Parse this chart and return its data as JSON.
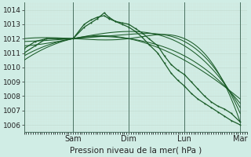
{
  "bg_color": "#d0ede5",
  "grid_color_major": "#b8d8cc",
  "grid_color_minor": "#c8e4da",
  "line_color": "#1a5c28",
  "title": "Pression niveau de la mer( hPa )",
  "ylim": [
    1005.5,
    1014.5
  ],
  "yticks": [
    1006,
    1007,
    1008,
    1009,
    1010,
    1011,
    1012,
    1013,
    1014
  ],
  "day_labels": [
    "Sam",
    "Dim",
    "Lun",
    "Mar"
  ],
  "day_positions": [
    0.22,
    0.47,
    0.72,
    0.97
  ],
  "xlim": [
    0,
    1
  ],
  "series_smooth": [
    {
      "x": [
        0.0,
        0.22,
        0.47,
        0.72,
        0.97
      ],
      "y": [
        1012.0,
        1012.0,
        1012.0,
        1012.0,
        1006.2
      ]
    },
    {
      "x": [
        0.0,
        0.22,
        0.47,
        0.72,
        0.97
      ],
      "y": [
        1011.8,
        1012.0,
        1012.3,
        1011.8,
        1006.8
      ]
    },
    {
      "x": [
        0.0,
        0.22,
        0.47,
        0.72,
        0.97
      ],
      "y": [
        1011.5,
        1012.0,
        1012.5,
        1011.5,
        1007.2
      ]
    },
    {
      "x": [
        0.0,
        0.22,
        0.47,
        0.72,
        0.97
      ],
      "y": [
        1010.8,
        1012.0,
        1012.0,
        1010.8,
        1007.5
      ]
    },
    {
      "x": [
        0.0,
        0.22,
        0.47,
        0.72,
        0.97
      ],
      "y": [
        1010.5,
        1012.0,
        1012.0,
        1010.5,
        1007.8
      ]
    }
  ],
  "series_marked": [
    {
      "x": [
        0.0,
        0.05,
        0.1,
        0.15,
        0.22,
        0.27,
        0.3,
        0.33,
        0.36,
        0.38,
        0.41,
        0.44,
        0.47,
        0.5,
        0.53,
        0.56,
        0.6,
        0.63,
        0.66,
        0.69,
        0.72,
        0.75,
        0.78,
        0.81,
        0.84,
        0.87,
        0.9,
        0.93,
        0.97
      ],
      "y": [
        1011.3,
        1011.8,
        1012.0,
        1012.0,
        1012.0,
        1013.0,
        1013.3,
        1013.5,
        1013.6,
        1013.4,
        1013.2,
        1013.1,
        1013.0,
        1012.7,
        1012.4,
        1012.0,
        1011.5,
        1010.8,
        1010.2,
        1009.8,
        1009.5,
        1009.0,
        1008.5,
        1008.0,
        1007.6,
        1007.3,
        1007.1,
        1006.8,
        1006.2
      ]
    },
    {
      "x": [
        0.0,
        0.05,
        0.1,
        0.15,
        0.22,
        0.27,
        0.3,
        0.33,
        0.36,
        0.38,
        0.41,
        0.44,
        0.47,
        0.5,
        0.53,
        0.56,
        0.6,
        0.63,
        0.66,
        0.69,
        0.72,
        0.75,
        0.78,
        0.81,
        0.84,
        0.87,
        0.9,
        0.93,
        0.97
      ],
      "y": [
        1011.0,
        1011.5,
        1012.0,
        1012.0,
        1012.0,
        1012.8,
        1013.1,
        1013.4,
        1013.8,
        1013.5,
        1013.2,
        1013.0,
        1012.8,
        1012.5,
        1012.1,
        1011.6,
        1011.0,
        1010.3,
        1009.6,
        1009.1,
        1008.7,
        1008.2,
        1007.8,
        1007.5,
        1007.2,
        1006.9,
        1006.6,
        1006.3,
        1006.0
      ]
    }
  ]
}
